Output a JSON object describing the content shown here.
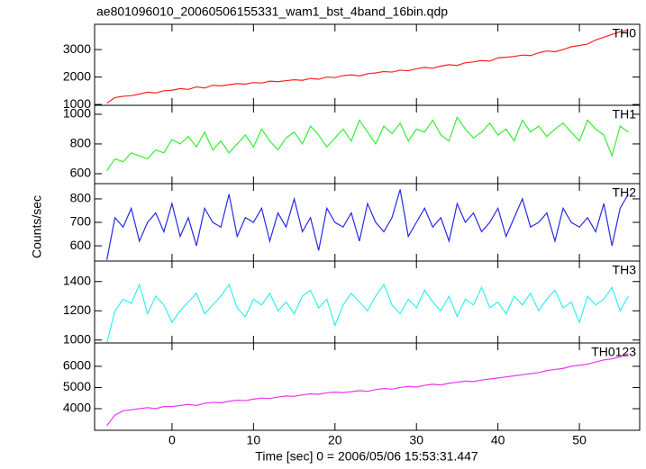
{
  "chart_data": {
    "type": "line",
    "title": "ae801096010_20060506155331_wam1_bst_4band_16bin.qdp",
    "xlabel": "Time [sec] 0 = 2006/05/06 15:53:31.447",
    "ylabel": "Counts/sec",
    "x": [
      -8,
      -7,
      -6,
      -5,
      -4,
      -3,
      -2,
      -1,
      0,
      1,
      2,
      3,
      4,
      5,
      6,
      7,
      8,
      9,
      10,
      11,
      12,
      13,
      14,
      15,
      16,
      17,
      18,
      19,
      20,
      21,
      22,
      23,
      24,
      25,
      26,
      27,
      28,
      29,
      30,
      31,
      32,
      33,
      34,
      35,
      36,
      37,
      38,
      39,
      40,
      41,
      42,
      43,
      44,
      45,
      46,
      47,
      48,
      49,
      50,
      51,
      52,
      53,
      54,
      55,
      56
    ],
    "xlim": [
      -9.5,
      57.4
    ],
    "xticks": [
      0,
      10,
      20,
      30,
      40,
      50
    ],
    "series": [
      {
        "name": "TH0",
        "color": "#ff2020",
        "ylim": [
          970,
          3920
        ],
        "yticks": [
          1000,
          2000,
          3000
        ],
        "values": [
          1050,
          1250,
          1300,
          1320,
          1380,
          1450,
          1420,
          1500,
          1520,
          1580,
          1550,
          1640,
          1600,
          1700,
          1680,
          1720,
          1760,
          1740,
          1800,
          1780,
          1850,
          1830,
          1870,
          1900,
          1880,
          1950,
          1920,
          2000,
          1980,
          2050,
          2080,
          2040,
          2120,
          2150,
          2200,
          2180,
          2250,
          2230,
          2300,
          2350,
          2320,
          2400,
          2450,
          2420,
          2520,
          2550,
          2600,
          2580,
          2700,
          2720,
          2750,
          2800,
          2780,
          2880,
          2950,
          2920,
          3000,
          3100,
          3150,
          3200,
          3350,
          3450,
          3550,
          3650,
          3700
        ]
      },
      {
        "name": "TH1",
        "color": "#33ee33",
        "ylim": [
          533,
          1060
        ],
        "yticks": [
          600,
          800,
          1000
        ],
        "values": [
          620,
          700,
          680,
          740,
          720,
          700,
          760,
          740,
          830,
          800,
          850,
          780,
          880,
          760,
          820,
          740,
          800,
          860,
          780,
          900,
          820,
          760,
          840,
          880,
          800,
          920,
          860,
          780,
          840,
          900,
          820,
          960,
          880,
          800,
          920,
          870,
          940,
          820,
          900,
          880,
          960,
          860,
          820,
          980,
          900,
          840,
          880,
          940,
          860,
          900,
          820,
          960,
          880,
          920,
          850,
          900,
          940,
          880,
          820,
          960,
          900,
          860,
          720,
          920,
          880
        ]
      },
      {
        "name": "TH2",
        "color": "#2828e8",
        "ylim": [
          535,
          865
        ],
        "yticks": [
          600,
          700,
          800
        ],
        "values": [
          540,
          720,
          680,
          760,
          620,
          700,
          740,
          660,
          780,
          640,
          720,
          600,
          760,
          700,
          680,
          820,
          640,
          720,
          700,
          760,
          620,
          740,
          680,
          800,
          660,
          720,
          580,
          760,
          700,
          680,
          740,
          620,
          780,
          700,
          660,
          720,
          840,
          640,
          700,
          760,
          680,
          720,
          620,
          780,
          700,
          740,
          660,
          700,
          760,
          640,
          720,
          800,
          680,
          700,
          740,
          620,
          760,
          700,
          680,
          720,
          660,
          780,
          600,
          760,
          820
        ]
      },
      {
        "name": "TH3",
        "color": "#33eeee",
        "ylim": [
          980,
          1540
        ],
        "yticks": [
          1000,
          1200,
          1400
        ],
        "values": [
          980,
          1200,
          1280,
          1250,
          1380,
          1180,
          1300,
          1240,
          1120,
          1200,
          1260,
          1320,
          1180,
          1240,
          1300,
          1380,
          1220,
          1160,
          1280,
          1240,
          1320,
          1200,
          1260,
          1180,
          1300,
          1340,
          1220,
          1280,
          1100,
          1240,
          1320,
          1260,
          1200,
          1300,
          1380,
          1240,
          1180,
          1280,
          1220,
          1340,
          1260,
          1200,
          1300,
          1160,
          1280,
          1240,
          1360,
          1220,
          1260,
          1180,
          1300,
          1240,
          1320,
          1200,
          1280,
          1340,
          1220,
          1260,
          1120,
          1300,
          1240,
          1280,
          1360,
          1200,
          1300
        ]
      },
      {
        "name": "TH0123",
        "color": "#ee33ee",
        "ylim": [
          2980,
          7100
        ],
        "yticks": [
          4000,
          5000,
          6000
        ],
        "values": [
          3200,
          3700,
          3900,
          3950,
          4000,
          4050,
          4000,
          4100,
          4100,
          4150,
          4200,
          4150,
          4250,
          4300,
          4280,
          4350,
          4400,
          4380,
          4450,
          4500,
          4480,
          4550,
          4600,
          4580,
          4650,
          4700,
          4680,
          4750,
          4780,
          4760,
          4800,
          4850,
          4820,
          4900,
          4950,
          4920,
          5000,
          5050,
          5020,
          5100,
          5150,
          5120,
          5200,
          5250,
          5300,
          5280,
          5350,
          5400,
          5450,
          5500,
          5550,
          5600,
          5650,
          5700,
          5800,
          5850,
          5900,
          6000,
          6050,
          6100,
          6200,
          6300,
          6350,
          6450,
          6600
        ]
      }
    ]
  }
}
